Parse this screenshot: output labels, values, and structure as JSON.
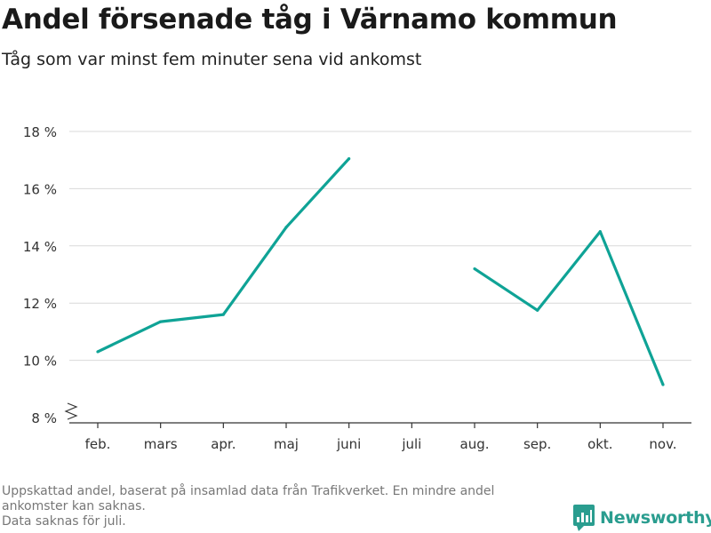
{
  "header": {
    "title": "Andel försenade tåg i Värnamo kommun",
    "subtitle": "Tåg som var minst fem minuter sena vid ankomst"
  },
  "footer": {
    "note_line1": "Uppskattad andel, baserat på insamlad data från Trafikverket. En mindre andel",
    "note_line2": "ankomster kan saknas.",
    "note_line3": "Data saknas för juli."
  },
  "brand": {
    "name": "Newsworthy",
    "color": "#2a9d8f"
  },
  "chart_data": {
    "type": "line",
    "title": "Andel försenade tåg i Värnamo kommun",
    "subtitle": "Tåg som var minst fem minuter sena vid ankomst",
    "xlabel": "",
    "ylabel": "",
    "categories": [
      "feb.",
      "mars",
      "apr.",
      "maj",
      "juni",
      "juli",
      "aug.",
      "sep.",
      "okt.",
      "nov."
    ],
    "series": [
      {
        "values": [
          10.3,
          11.35,
          11.6,
          14.65,
          17.05,
          null,
          13.2,
          11.75,
          14.5,
          9.15
        ],
        "color": "#0fa396"
      }
    ],
    "ylim": [
      8,
      18
    ],
    "yticks": [
      8,
      10,
      12,
      14,
      16,
      18
    ],
    "ytick_labels": [
      "8 %",
      "10 %",
      "12 %",
      "14 %",
      "16 %",
      "18 %"
    ],
    "axis_break": true,
    "grid": true,
    "legend": "none"
  }
}
